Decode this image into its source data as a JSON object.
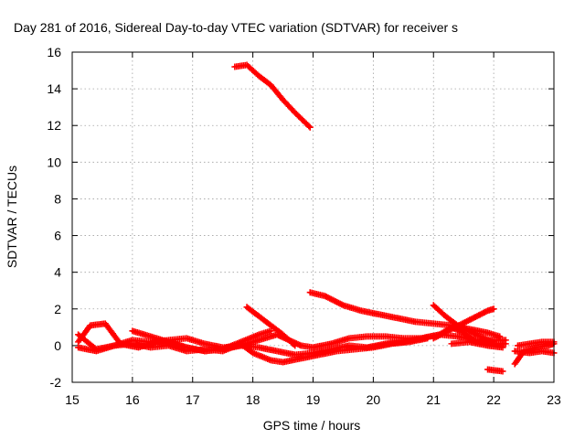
{
  "chart_data": {
    "type": "scatter",
    "title": "Day 281 of 2016, Sidereal Day-to-day VTEC variation (SDTVAR) for receiver s",
    "xlabel": "GPS time / hours",
    "ylabel": "SDTVAR / TECUs",
    "xlim": [
      15,
      23
    ],
    "ylim": [
      -2,
      16
    ],
    "x_ticks": [
      15,
      16,
      17,
      18,
      19,
      20,
      21,
      22,
      23
    ],
    "y_ticks": [
      -2,
      0,
      2,
      4,
      6,
      8,
      10,
      12,
      14,
      16
    ],
    "x_tick_labels": [
      "15",
      "16",
      "17",
      "18",
      "19",
      "20",
      "21",
      "22",
      "23"
    ],
    "y_tick_labels": [
      "-2",
      "0",
      "2",
      "4",
      "6",
      "8",
      "10",
      "12",
      "14",
      "16"
    ],
    "grid": true,
    "marker": "plus",
    "color": "#ff0000",
    "series": [
      {
        "x": [
          17.7,
          17.9,
          18.1,
          18.3,
          18.5,
          18.7,
          18.95
        ],
        "y": [
          15.2,
          15.3,
          14.7,
          14.2,
          13.4,
          12.7,
          11.9
        ]
      },
      {
        "x": [
          18.95,
          19.2,
          19.5,
          19.8,
          20.1,
          20.4,
          20.7,
          21.0,
          21.3,
          21.6,
          21.9,
          22.1
        ],
        "y": [
          2.9,
          2.7,
          2.2,
          1.9,
          1.7,
          1.5,
          1.3,
          1.2,
          1.1,
          0.9,
          0.7,
          0.5
        ]
      },
      {
        "x": [
          17.9,
          18.1,
          18.3,
          18.5,
          18.7
        ],
        "y": [
          2.1,
          1.6,
          1.1,
          0.6,
          0.0
        ]
      },
      {
        "x": [
          21.0,
          21.3,
          21.6,
          21.9,
          22.0
        ],
        "y": [
          0.4,
          0.9,
          1.4,
          1.9,
          2.0
        ]
      },
      {
        "x": [
          21.0,
          21.2,
          21.4,
          21.7,
          22.0
        ],
        "y": [
          2.2,
          1.6,
          1.1,
          0.6,
          0.2
        ]
      },
      {
        "x": [
          15.1,
          15.3,
          15.55,
          15.8,
          16.1,
          16.4,
          16.7,
          16.9,
          17.2,
          17.5,
          17.8,
          18.1,
          18.4,
          18.6,
          18.8,
          19.0,
          19.3,
          19.6,
          19.9,
          20.2,
          20.5,
          20.8,
          21.1,
          21.4,
          21.7,
          22.0,
          22.2
        ],
        "y": [
          0.2,
          1.1,
          1.2,
          0.1,
          -0.1,
          0.2,
          0.1,
          -0.1,
          -0.3,
          -0.2,
          0.0,
          0.3,
          0.6,
          0.3,
          0.0,
          -0.1,
          0.1,
          0.4,
          0.5,
          0.5,
          0.4,
          0.4,
          0.6,
          0.5,
          0.3,
          0.1,
          0.1
        ]
      },
      {
        "x": [
          15.1,
          15.4,
          15.7,
          16.0,
          16.3,
          16.6,
          16.9,
          17.2,
          17.5,
          17.8,
          18.1,
          18.4,
          18.7,
          19.0,
          19.3,
          19.6,
          19.9,
          20.2,
          20.5,
          20.8,
          21.1,
          21.3,
          21.5,
          21.7,
          22.0,
          22.2
        ],
        "y": [
          0.6,
          -0.2,
          0.0,
          0.3,
          0.2,
          0.3,
          0.4,
          0.1,
          -0.1,
          0.0,
          -0.1,
          -0.3,
          -0.5,
          -0.4,
          -0.2,
          0.0,
          -0.1,
          0.1,
          0.2,
          0.4,
          0.6,
          1.0,
          0.7,
          0.2,
          0.3,
          0.3
        ]
      },
      {
        "x": [
          15.1,
          15.4,
          15.7,
          16.0,
          16.3,
          16.6,
          16.9,
          17.2,
          17.5,
          17.8,
          18.0,
          18.3,
          18.5,
          18.8,
          19.1,
          19.4,
          19.7,
          20.0,
          20.3,
          20.6,
          20.9
        ],
        "y": [
          -0.1,
          -0.3,
          0.0,
          0.1,
          -0.1,
          0.0,
          -0.3,
          -0.2,
          -0.3,
          0.1,
          -0.4,
          -0.8,
          -0.9,
          -0.7,
          -0.5,
          -0.3,
          -0.2,
          -0.1,
          0.1,
          0.2,
          0.4
        ]
      },
      {
        "x": [
          16.0,
          16.3,
          16.6,
          16.9,
          17.2,
          17.5,
          17.8,
          18.1,
          18.3
        ],
        "y": [
          0.8,
          0.5,
          0.2,
          -0.1,
          -0.3,
          -0.2,
          0.2,
          0.6,
          0.8
        ]
      },
      {
        "x": [
          21.3,
          21.6,
          21.9,
          22.15
        ],
        "y": [
          0.1,
          0.2,
          0.0,
          -0.1
        ]
      },
      {
        "x": [
          21.9,
          22.15
        ],
        "y": [
          -1.3,
          -1.4
        ]
      },
      {
        "x": [
          22.35,
          22.5,
          22.7,
          22.9,
          23.0
        ],
        "y": [
          -1.0,
          -0.3,
          -0.1,
          0.0,
          0.1
        ]
      },
      {
        "x": [
          22.35,
          22.6,
          22.8,
          23.0
        ],
        "y": [
          -0.3,
          -0.4,
          -0.3,
          -0.4
        ]
      },
      {
        "x": [
          22.4,
          22.6,
          22.8,
          23.0
        ],
        "y": [
          0.0,
          0.1,
          0.2,
          0.2
        ]
      }
    ]
  }
}
